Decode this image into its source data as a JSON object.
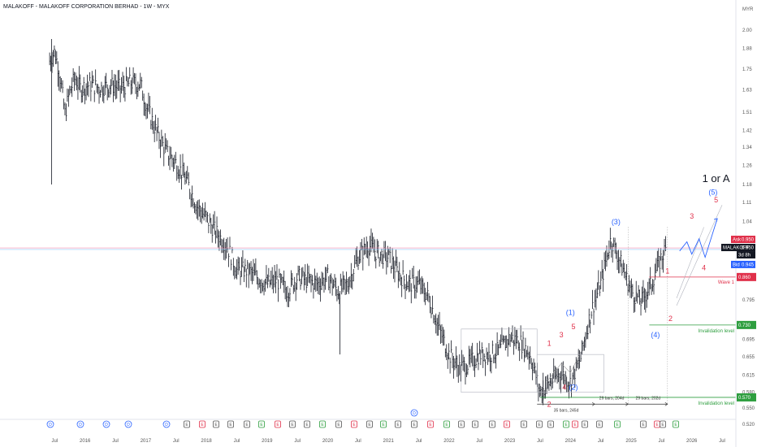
{
  "header": {
    "title": "MALAKOFF - MALAKOFF CORPORATION BERHAD - 1W - MYX"
  },
  "colors": {
    "red": "#e0304a",
    "blue": "#2962ff",
    "green": "#2e9e3f",
    "black": "#131722",
    "bar": "#131722"
  },
  "chart_data": {
    "type": "ohlc",
    "currency": "MYR",
    "title": "MALAKOFF - MALAKOFF CORPORATION BERHAD - 1W - MYX",
    "ylim": [
      0.52,
      2.08
    ],
    "y_scale": "log",
    "y_ticks": [
      "2.00",
      "1.88",
      "1.75",
      "1.63",
      "1.51",
      "1.42",
      "1.34",
      "1.26",
      "1.18",
      "1.11",
      "1.04",
      "0.950",
      "0.860",
      "0.795",
      "0.730",
      "0.695",
      "0.655",
      "0.615",
      "0.580",
      "0.550",
      "0.520"
    ],
    "x_ticks": [
      "Jul",
      "2016",
      "Jul",
      "2017",
      "Jul",
      "2018",
      "Jul",
      "2019",
      "Jul",
      "2020",
      "Jul",
      "2021",
      "Jul",
      "2022",
      "Jul",
      "2023",
      "Jul",
      "2024",
      "Jul",
      "2025",
      "Jul",
      "2026",
      "Jul"
    ],
    "close_series": [
      [
        "2015-06",
        1.8
      ],
      [
        "2015-07",
        1.86
      ],
      [
        "2015-08",
        1.72
      ],
      [
        "2015-09",
        1.5
      ],
      [
        "2015-10",
        1.62
      ],
      [
        "2015-11",
        1.7
      ],
      [
        "2015-12",
        1.64
      ],
      [
        "2016-02",
        1.66
      ],
      [
        "2016-04",
        1.64
      ],
      [
        "2016-06",
        1.66
      ],
      [
        "2016-08",
        1.64
      ],
      [
        "2016-10",
        1.67
      ],
      [
        "2016-12",
        1.66
      ],
      [
        "2017-01",
        1.55
      ],
      [
        "2017-03",
        1.42
      ],
      [
        "2017-05",
        1.32
      ],
      [
        "2017-07",
        1.27
      ],
      [
        "2017-09",
        1.2
      ],
      [
        "2017-11",
        1.1
      ],
      [
        "2018-01",
        1.05
      ],
      [
        "2018-03",
        1.0
      ],
      [
        "2018-05",
        0.96
      ],
      [
        "2018-07",
        0.88
      ],
      [
        "2018-09",
        0.88
      ],
      [
        "2018-11",
        0.86
      ],
      [
        "2019-01",
        0.84
      ],
      [
        "2019-03",
        0.85
      ],
      [
        "2019-05",
        0.82
      ],
      [
        "2019-07",
        0.86
      ],
      [
        "2019-09",
        0.85
      ],
      [
        "2019-11",
        0.84
      ],
      [
        "2020-01",
        0.86
      ],
      [
        "2020-03",
        0.82
      ],
      [
        "2020-05",
        0.84
      ],
      [
        "2020-07",
        0.92
      ],
      [
        "2020-09",
        0.96
      ],
      [
        "2020-11",
        0.93
      ],
      [
        "2021-01",
        0.92
      ],
      [
        "2021-03",
        0.87
      ],
      [
        "2021-05",
        0.84
      ],
      [
        "2021-07",
        0.84
      ],
      [
        "2021-09",
        0.8
      ],
      [
        "2021-11",
        0.72
      ],
      [
        "2022-01",
        0.66
      ],
      [
        "2022-03",
        0.63
      ],
      [
        "2022-05",
        0.64
      ],
      [
        "2022-07",
        0.66
      ],
      [
        "2022-09",
        0.66
      ],
      [
        "2022-11",
        0.67
      ],
      [
        "2023-01",
        0.7
      ],
      [
        "2023-03",
        0.69
      ],
      [
        "2023-05",
        0.66
      ],
      [
        "2023-07",
        0.58
      ],
      [
        "2023-09",
        0.6
      ],
      [
        "2023-11",
        0.62
      ],
      [
        "2024-01",
        0.6
      ],
      [
        "2024-03",
        0.65
      ],
      [
        "2024-05",
        0.76
      ],
      [
        "2024-07",
        0.84
      ],
      [
        "2024-09",
        0.98
      ],
      [
        "2024-11",
        0.9
      ],
      [
        "2025-01",
        0.82
      ],
      [
        "2025-03",
        0.79
      ],
      [
        "2025-05",
        0.84
      ],
      [
        "2025-07",
        0.92
      ],
      [
        "2025-08",
        0.95
      ]
    ],
    "elliott_labels": {
      "red": [
        "1",
        "3",
        "5",
        "2",
        "4",
        "1",
        "2",
        "3",
        "4",
        "5"
      ],
      "blue": [
        "(1)",
        "(2)",
        "(3)",
        "(4)",
        "(5)"
      ],
      "black": [
        "1 or A"
      ]
    },
    "annotations": {
      "wave1": "Wave 1",
      "invalidation_upper": "Invalidation level",
      "invalidation_lower": "Invalidation level",
      "range1": "35 bars, 245d",
      "range2": "29 bars, 204d",
      "range3": "29 bars, 202d"
    },
    "price_tags": {
      "ask_label": "Ask",
      "ask": "0.950",
      "symbol": "MALAKOFF",
      "last": "0.950",
      "countdown": "3d 8h",
      "bid_label": "Bid",
      "bid": "0.945",
      "wave1": "0.860",
      "invalid_upper": "0.730",
      "invalid_lower": "0.570"
    },
    "events": [
      "D",
      "D",
      "D",
      "D",
      "D",
      "E",
      "E",
      "E",
      "E",
      "E",
      "E",
      "E",
      "E",
      "E",
      "E",
      "E",
      "E",
      "E",
      "E",
      "E",
      "E",
      "E",
      "E",
      "E",
      "E",
      "E",
      "E",
      "E",
      "E",
      "E",
      "E",
      "E",
      "E",
      "E",
      "E",
      "E",
      "E",
      "E",
      "E",
      "E",
      "E"
    ]
  }
}
